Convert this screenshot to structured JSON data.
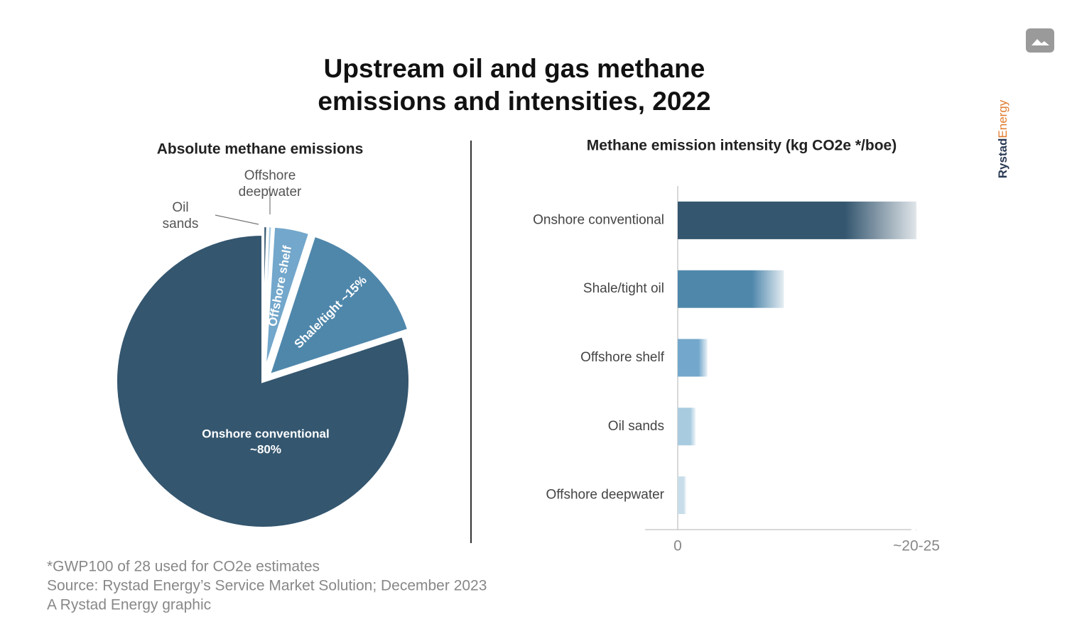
{
  "title": "Upstream oil and gas methane emissions and intensities, 2022",
  "chart_data": [
    {
      "type": "pie",
      "title": "Absolute methane emissions",
      "categories": [
        "Oil sands",
        "Offshore deepwater",
        "Offshore shelf",
        "Shale/tight",
        "Onshore conventional"
      ],
      "values": [
        0.5,
        0.5,
        4,
        15,
        80
      ],
      "value_labels": [
        null,
        null,
        null,
        "~15%",
        "~80%"
      ],
      "colors": [
        "#34566f",
        "#a9cbe0",
        "#73a7cb",
        "#4f87ab",
        "#34566f"
      ]
    },
    {
      "type": "hbar",
      "title": "Methane emission intensity (kg CO2e */boe)",
      "categories": [
        "Onshore conventional",
        "Shale/tight oil",
        "Offshore shelf",
        "Oil sands",
        "Offshore deepwater"
      ],
      "values": [
        22.5,
        10,
        2.8,
        1.7,
        0.8
      ],
      "colors": [
        "#34566f",
        "#4f87ab",
        "#73a7cb",
        "#a9cbe0",
        "#c8dde9"
      ],
      "xlim": [
        0,
        22.5
      ],
      "xticks": [
        0,
        {
          "value": 22.5,
          "label": "~20-25"
        }
      ]
    }
  ],
  "notes": [
    "*GWP100 of 28 used for CO2e estimates",
    "Source: Rystad Energy’s Service Market Solution; December 2023",
    "A Rystad Energy graphic"
  ],
  "brand": [
    "Rystad",
    "Energy"
  ]
}
